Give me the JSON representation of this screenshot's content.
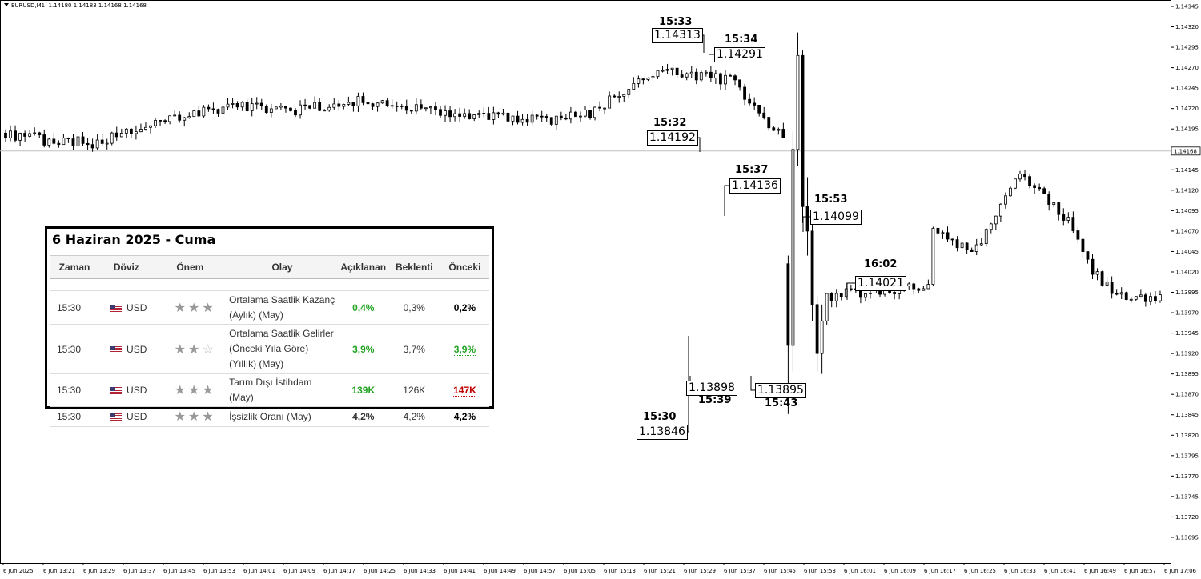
{
  "chart_info": {
    "symbol": "EURUSD,M1",
    "ohlc": "1.14180 1.14183 1.14168 1.14168"
  },
  "colors": {
    "bull_fill": "#ffffff",
    "bear_fill": "#000000",
    "wick": "#000000",
    "price_line": "#c0c0c0",
    "positive": "#23a323",
    "negative": "#c00000"
  },
  "chart_data": {
    "type": "candlestick",
    "symbol": "EURUSD",
    "timeframe": "M1",
    "ylim": [
      1.13693,
      1.14345
    ],
    "yticks": [
      "1.14345",
      "1.14320",
      "1.14295",
      "1.14270",
      "1.14245",
      "1.14220",
      "1.14195",
      "1.14170",
      "1.14145",
      "1.14120",
      "1.14095",
      "1.14070",
      "1.14045",
      "1.14020",
      "1.13995",
      "1.13970",
      "1.13945",
      "1.13920",
      "1.13895",
      "1.13870",
      "1.13845",
      "1.13820",
      "1.13795",
      "1.13770",
      "1.13745",
      "1.13720",
      "1.13695"
    ],
    "current_price": "1.14168",
    "xticks": [
      "6 Jun 2025",
      "6 Jun 13:21",
      "6 Jun 13:29",
      "6 Jun 13:37",
      "6 Jun 13:45",
      "6 Jun 13:53",
      "6 Jun 14:01",
      "6 Jun 14:09",
      "6 Jun 14:17",
      "6 Jun 14:25",
      "6 Jun 14:33",
      "6 Jun 14:41",
      "6 Jun 14:49",
      "6 Jun 14:57",
      "6 Jun 15:05",
      "6 Jun 15:13",
      "6 Jun 15:21",
      "6 Jun 15:29",
      "6 Jun 15:37",
      "6 Jun 15:45",
      "6 Jun 15:53",
      "6 Jun 16:01",
      "6 Jun 16:09",
      "6 Jun 16:17",
      "6 Jun 16:25",
      "6 Jun 16:33",
      "6 Jun 16:41",
      "6 Jun 16:49",
      "6 Jun 16:57",
      "6 Jun 17:06"
    ],
    "candle_count": 240,
    "xlim_index": [
      0,
      240
    ],
    "close_path": [
      [
        0,
        1.1419
      ],
      [
        10,
        1.1418
      ],
      [
        20,
        1.14178
      ],
      [
        30,
        1.14205
      ],
      [
        45,
        1.14222
      ],
      [
        60,
        1.14218
      ],
      [
        75,
        1.1423
      ],
      [
        90,
        1.14215
      ],
      [
        110,
        1.14205
      ],
      [
        120,
        1.14212
      ],
      [
        133,
        1.1426
      ],
      [
        140,
        1.14265
      ],
      [
        150,
        1.14255
      ],
      [
        160,
        1.1419
      ],
      [
        170,
        1.1418
      ],
      [
        180,
        1.1414
      ],
      [
        190,
        1.14085
      ],
      [
        200,
        1.1404
      ],
      [
        205,
        1.1409
      ],
      [
        210,
        1.1414
      ],
      [
        215,
        1.1411
      ],
      [
        220,
        1.1408
      ],
      [
        225,
        1.1402
      ],
      [
        230,
        1.1399
      ]
    ],
    "candles_script_generated": true,
    "annotations": [
      {
        "time": "15:33",
        "price": "1.14313"
      },
      {
        "time": "15:34",
        "price": "1.14291"
      },
      {
        "time": "15:32",
        "price": "1.14192"
      },
      {
        "time": "15:37",
        "price": "1.14136"
      },
      {
        "time": "15:53",
        "price": "1.14099"
      },
      {
        "time": "16:02",
        "price": "1.14021"
      },
      {
        "time": "15:39",
        "price": "1.13898"
      },
      {
        "time": "15:43",
        "price": "1.13895"
      },
      {
        "time": "15:30",
        "price": "1.13846"
      }
    ]
  },
  "calendar": {
    "title": "6 Haziran 2025 - Cuma",
    "headers": [
      "Zaman",
      "Döviz",
      "Önem",
      "Olay",
      "Açıklanan",
      "Beklenti",
      "Önceki"
    ],
    "rows": [
      {
        "time": "15:30",
        "currency": "USD",
        "stars": 3,
        "event": "Ortalama Saatlik Kazanç (Aylık) (May)",
        "actual": "0,4%",
        "forecast": "0,3%",
        "previous": "0,2%",
        "actual_color": "green",
        "previous_color": "black"
      },
      {
        "time": "15:30",
        "currency": "USD",
        "stars": 2,
        "event": "Ortalama Saatlik Gelirler (Önceki Yıla Göre) (Yıllık) (May)",
        "actual": "3,9%",
        "forecast": "3,7%",
        "previous": "3,9%",
        "actual_color": "green",
        "previous_color": "green"
      },
      {
        "time": "15:30",
        "currency": "USD",
        "stars": 3,
        "event": "Tarım Dışı İstihdam (May)",
        "actual": "139K",
        "forecast": "126K",
        "previous": "147K",
        "actual_color": "green",
        "previous_color": "red"
      },
      {
        "time": "15:30",
        "currency": "USD",
        "stars": 3,
        "event": "İşsizlik Oranı (May)",
        "actual": "4,2%",
        "forecast": "4,2%",
        "previous": "4,2%",
        "actual_color": "black",
        "previous_color": "black"
      }
    ]
  }
}
